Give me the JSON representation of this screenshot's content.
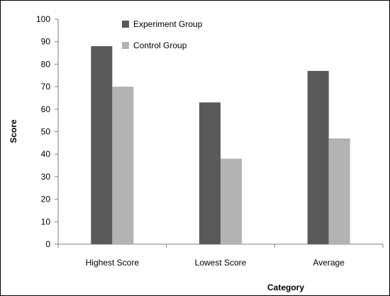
{
  "chart_data": {
    "type": "bar",
    "title": "",
    "xlabel": "Category",
    "ylabel": "Score",
    "ylim": [
      0,
      100
    ],
    "yticks": [
      0,
      10,
      20,
      30,
      40,
      50,
      60,
      70,
      80,
      90,
      100
    ],
    "categories": [
      "Highest Score",
      "Lowest Score",
      "Average"
    ],
    "series": [
      {
        "name": "Experiment Group",
        "values": [
          88,
          63,
          77
        ],
        "color": "#595959"
      },
      {
        "name": "Control Group",
        "values": [
          70,
          38,
          47
        ],
        "color": "#b3b3b3"
      }
    ],
    "legend_position": "top-left inside plot",
    "grid": false
  }
}
